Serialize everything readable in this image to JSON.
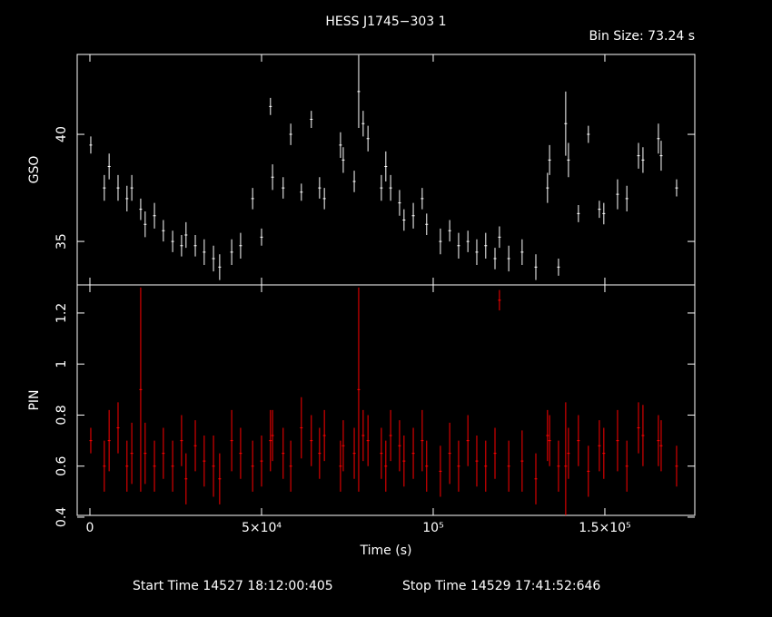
{
  "chart_data": [
    {
      "type": "errorbar",
      "title": "HESS J1745−303 1",
      "subtitle": "Bin Size: 73.24 s",
      "ylabel": "GSO",
      "x": [
        260,
        4200,
        5600,
        8200,
        10800,
        12200,
        14800,
        16100,
        18800,
        21400,
        24100,
        26700,
        28000,
        30700,
        33300,
        36000,
        37800,
        41300,
        43900,
        47400,
        50000,
        52600,
        53200,
        56300,
        58500,
        61600,
        64500,
        66900,
        68300,
        73000,
        73800,
        77000,
        78300,
        79600,
        81000,
        84900,
        86200,
        87600,
        90200,
        91500,
        94200,
        96800,
        98100,
        102100,
        104800,
        107400,
        110100,
        112700,
        115300,
        118000,
        119300,
        122000,
        125900,
        129900,
        133300,
        133900,
        136500,
        138600,
        139400,
        142300,
        145200,
        148400,
        149700,
        153700,
        156400,
        159800,
        161100,
        165600,
        166400,
        170900
      ],
      "values": [
        39.5,
        37.5,
        38.5,
        37.5,
        37,
        37.5,
        36.5,
        35.8,
        36.2,
        35.5,
        35,
        34.8,
        35.3,
        34.8,
        34.5,
        34.2,
        33.8,
        34.5,
        34.8,
        37,
        35.2,
        41.3,
        38,
        37.5,
        40,
        37.3,
        40.7,
        37.5,
        37,
        39.5,
        38.8,
        37.8,
        42,
        40.5,
        39.8,
        37.5,
        38.5,
        37.5,
        36.8,
        36,
        36.2,
        37,
        35.8,
        35,
        35.5,
        34.8,
        35,
        34.5,
        34.8,
        34.2,
        35.2,
        34.2,
        34.5,
        33.8,
        37.5,
        38.8,
        33.8,
        40.5,
        38.8,
        36.3,
        40,
        36.5,
        36.3,
        37.2,
        37,
        39,
        38.8,
        39.8,
        39,
        37.5
      ],
      "errors": [
        0.4,
        0.6,
        0.6,
        0.6,
        0.6,
        0.6,
        0.5,
        0.6,
        0.6,
        0.5,
        0.5,
        0.5,
        0.6,
        0.5,
        0.6,
        0.6,
        0.6,
        0.6,
        0.6,
        0.5,
        0.4,
        0.4,
        0.6,
        0.5,
        0.5,
        0.4,
        0.4,
        0.5,
        0.5,
        0.6,
        0.6,
        0.5,
        1.7,
        0.6,
        0.6,
        0.6,
        0.7,
        0.6,
        0.6,
        0.5,
        0.6,
        0.5,
        0.5,
        0.6,
        0.5,
        0.6,
        0.5,
        0.6,
        0.6,
        0.5,
        0.5,
        0.6,
        0.6,
        0.6,
        0.7,
        0.7,
        0.4,
        1.5,
        0.8,
        0.4,
        0.4,
        0.4,
        0.5,
        0.7,
        0.6,
        0.6,
        0.6,
        0.7,
        0.7,
        0.4
      ],
      "color": "#ffffff",
      "xlim": [
        -3700,
        176200
      ],
      "xticks": [
        0,
        50000,
        100000,
        150000
      ],
      "show_xtick_labels": false,
      "ylim": [
        32.97,
        43.73
      ],
      "yticks": [
        35,
        40
      ]
    },
    {
      "type": "errorbar",
      "ylabel": "PIN",
      "xlabel": "Time (s)",
      "annotations": [
        "Start Time 14527 18:12:00:405",
        "Stop Time 14529 17:41:52:646"
      ],
      "x": [
        260,
        4200,
        5600,
        8200,
        10800,
        12200,
        14800,
        16100,
        18800,
        21400,
        24100,
        26700,
        28000,
        30700,
        33300,
        36000,
        37800,
        41300,
        43900,
        47400,
        50000,
        52600,
        53200,
        56300,
        58500,
        61600,
        64500,
        66900,
        68300,
        73000,
        73800,
        77000,
        78300,
        79600,
        81000,
        84900,
        86200,
        87600,
        90200,
        91500,
        94200,
        96800,
        98100,
        102100,
        104800,
        107400,
        110100,
        112700,
        115300,
        118000,
        119300,
        122000,
        125900,
        129900,
        133300,
        133900,
        136500,
        138600,
        139400,
        142300,
        145200,
        148400,
        149700,
        153700,
        156400,
        159800,
        161100,
        165600,
        166400,
        170900
      ],
      "values": [
        0.7,
        0.6,
        0.7,
        0.75,
        0.6,
        0.65,
        0.9,
        0.65,
        0.6,
        0.65,
        0.6,
        0.7,
        0.55,
        0.68,
        0.62,
        0.6,
        0.55,
        0.7,
        0.65,
        0.6,
        0.62,
        0.7,
        0.72,
        0.65,
        0.6,
        0.75,
        0.7,
        0.65,
        0.72,
        0.6,
        0.68,
        0.65,
        0.9,
        0.72,
        0.7,
        0.65,
        0.6,
        0.72,
        0.68,
        0.62,
        0.65,
        0.7,
        0.6,
        0.58,
        0.65,
        0.6,
        0.7,
        0.62,
        0.6,
        0.65,
        1.25,
        0.6,
        0.62,
        0.55,
        0.72,
        0.7,
        0.6,
        0.6,
        0.65,
        0.7,
        0.58,
        0.68,
        0.65,
        0.7,
        0.6,
        0.75,
        0.72,
        0.7,
        0.68,
        0.6
      ],
      "errors": [
        0.05,
        0.1,
        0.12,
        0.1,
        0.1,
        0.12,
        0.4,
        0.12,
        0.1,
        0.1,
        0.1,
        0.1,
        0.1,
        0.1,
        0.1,
        0.12,
        0.1,
        0.12,
        0.1,
        0.1,
        0.1,
        0.12,
        0.1,
        0.1,
        0.1,
        0.12,
        0.1,
        0.1,
        0.1,
        0.1,
        0.1,
        0.1,
        0.4,
        0.1,
        0.1,
        0.1,
        0.1,
        0.1,
        0.1,
        0.1,
        0.1,
        0.12,
        0.1,
        0.1,
        0.12,
        0.1,
        0.1,
        0.1,
        0.1,
        0.1,
        0.04,
        0.1,
        0.12,
        0.1,
        0.1,
        0.1,
        0.1,
        0.25,
        0.1,
        0.1,
        0.1,
        0.1,
        0.1,
        0.12,
        0.1,
        0.1,
        0.12,
        0.1,
        0.1,
        0.08
      ],
      "color": "#ff0000",
      "xlim": [
        -3700,
        176200
      ],
      "xticks": [
        0,
        {
          "value": 50000,
          "label": "5×10⁴"
        },
        {
          "value": 100000,
          "label": "10⁵"
        },
        {
          "value": 150000,
          "label": "1.5×10⁵"
        }
      ],
      "show_xtick_labels": true,
      "ylim": [
        0.407,
        1.31
      ],
      "yticks": [
        0.4,
        0.6,
        0.8,
        1,
        1.2
      ]
    }
  ]
}
